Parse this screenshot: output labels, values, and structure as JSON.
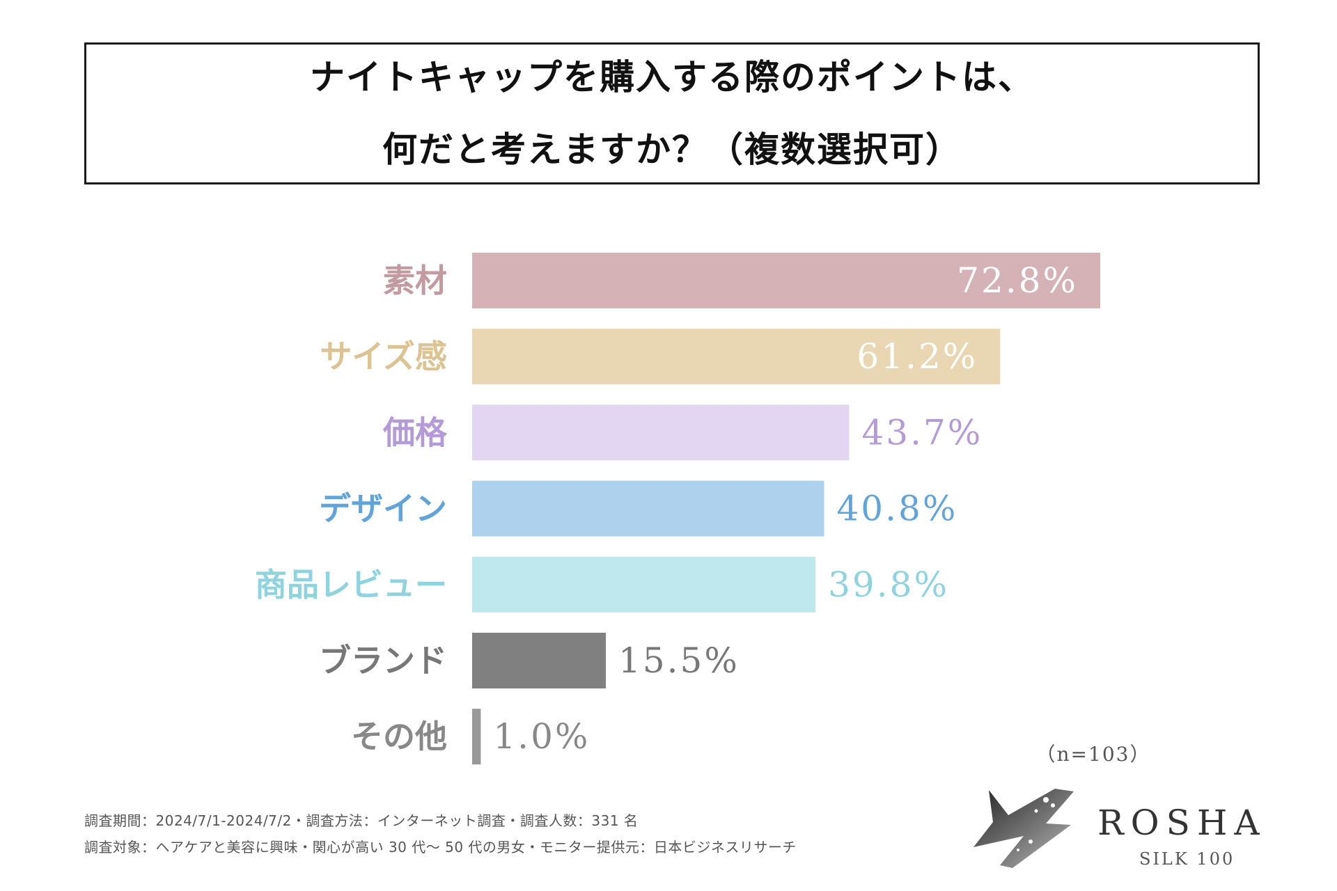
{
  "title": {
    "line1": "ナイトキャップを購入する際のポイントは、",
    "line2": "何だと考えますか？（複数選択可）"
  },
  "chart_data": {
    "type": "bar",
    "orientation": "horizontal",
    "categories": [
      "素材",
      "サイズ感",
      "価格",
      "デザイン",
      "商品レビュー",
      "ブランド",
      "その他"
    ],
    "values": [
      72.8,
      61.2,
      43.7,
      40.8,
      39.8,
      15.5,
      1.0
    ],
    "value_labels": [
      "72.8%",
      "61.2%",
      "43.7%",
      "40.8%",
      "39.8%",
      "15.5%",
      "1.0%"
    ],
    "bar_colors": [
      "#d4b2b6",
      "#e8d7b2",
      "#e2d6f2",
      "#aed1ee",
      "#bfe8ee",
      "#808080",
      "#999999"
    ],
    "label_colors": [
      "#c29aa0",
      "#dcc393",
      "#b49ad6",
      "#63a4d8",
      "#8fd3df",
      "#777777",
      "#888888"
    ],
    "value_colors": [
      "#ffffff",
      "#ffffff",
      "#b49ad6",
      "#63a4d8",
      "#8fd3df",
      "#777777",
      "#888888"
    ],
    "value_inside": [
      true,
      true,
      false,
      false,
      false,
      false,
      false
    ],
    "xlim": [
      0,
      100
    ],
    "xlabel": "",
    "ylabel": "",
    "grid": false,
    "sample_size": "（n=103）"
  },
  "footnotes": {
    "line1": "調査期間：2024/7/1-2024/7/2・調査方法：インターネット調査・調査人数：331 名",
    "line2": "調査対象：ヘアケアと美容に興味・関心が高い 30 代～ 50 代の男女・モニター提供元：日本ビジネスリサーチ"
  },
  "logo": {
    "brand": "ROSHA",
    "sub": "SILK 100"
  }
}
